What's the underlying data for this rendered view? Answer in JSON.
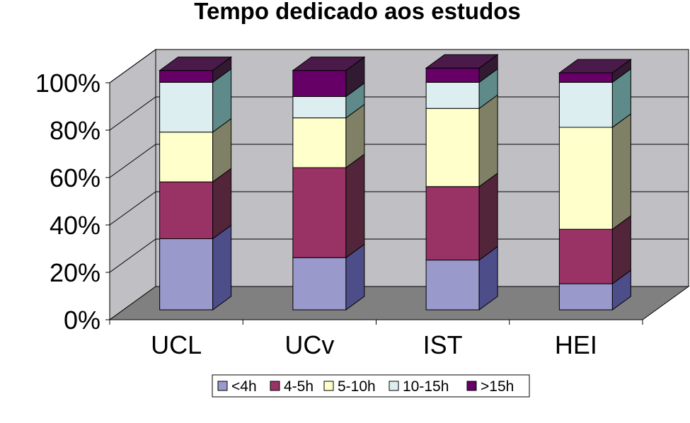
{
  "chart_data": {
    "type": "bar",
    "stacked": true,
    "percent": true,
    "three_d": true,
    "title": "Tempo dedicado aos estudos",
    "categories": [
      "UCL",
      "UCv",
      "IST",
      "HEI"
    ],
    "series": [
      {
        "name": "<4h",
        "values": [
          30,
          22,
          21,
          11
        ]
      },
      {
        "name": "4-5h",
        "values": [
          24,
          38,
          31,
          23
        ]
      },
      {
        "name": "5-10h",
        "values": [
          21,
          21,
          33,
          43
        ]
      },
      {
        "name": "10-15h",
        "values": [
          21,
          9,
          11,
          19
        ]
      },
      {
        "name": ">15h",
        "values": [
          5,
          11,
          6,
          4
        ]
      }
    ],
    "y_ticks": [
      "0%",
      "20%",
      "40%",
      "60%",
      "80%",
      "100%"
    ],
    "ylim": [
      0,
      100
    ],
    "grid": true,
    "legend_position": "bottom",
    "colors": {
      "series_front": [
        "#9999cc",
        "#993366",
        "#ffffcc",
        "#ddeef0",
        "#660066"
      ],
      "series_side": [
        "#4d4d8a",
        "#52253a",
        "#808066",
        "#5f8a8a",
        "#331a33"
      ],
      "series_top": [
        "#7070a8",
        "#7a2952",
        "#ccccaa",
        "#a8c4c4",
        "#4a1a4a"
      ],
      "wall": "#c0c0c4",
      "floor": "#808080",
      "grid": "#000000"
    }
  }
}
